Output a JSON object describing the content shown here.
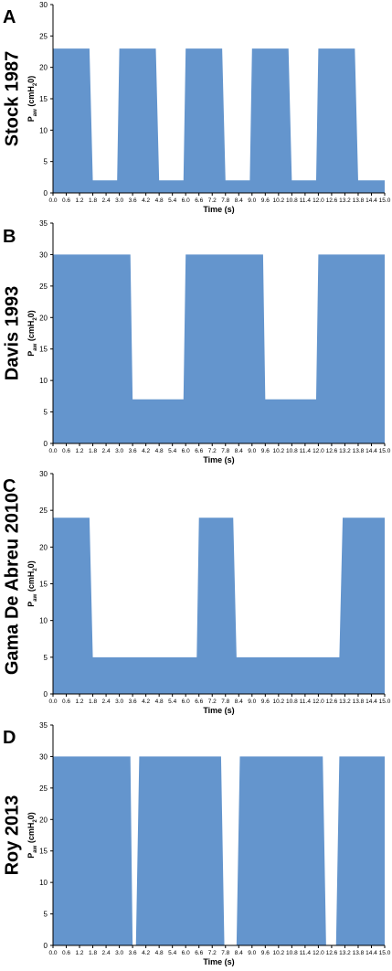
{
  "chart_data": [
    {
      "type": "area",
      "panel": "A",
      "side_label": "Stock 1987",
      "xlabel": "Time (s)",
      "ylabel": {
        "main": "P",
        "sub": "aw",
        "rest": " (cmH",
        "sub2": "2",
        "end": "0)"
      },
      "x_ticks": [
        "0.0",
        "0.6",
        "1.2",
        "1.8",
        "2.4",
        "3.0",
        "3.6",
        "4.2",
        "4.8",
        "5.4",
        "6.0",
        "6.6",
        "7.2",
        "7.8",
        "8.4",
        "9.0",
        "9.6",
        "10.2",
        "10.8",
        "11.4",
        "12.0",
        "12.6",
        "13.2",
        "13.8",
        "14.4",
        "15.0"
      ],
      "y_ticks": [
        0,
        5,
        10,
        15,
        20,
        25,
        30
      ],
      "xlim": [
        0,
        15
      ],
      "ylim": [
        0,
        30
      ],
      "x": [
        0,
        1.65,
        1.8,
        2.9,
        3.0,
        4.65,
        4.8,
        5.9,
        6.0,
        7.65,
        7.8,
        8.9,
        9.0,
        10.65,
        10.8,
        11.9,
        12.0,
        13.65,
        13.8,
        14.9,
        15.0
      ],
      "y": [
        23,
        23,
        2,
        2,
        23,
        23,
        2,
        2,
        23,
        23,
        2,
        2,
        23,
        23,
        2,
        2,
        23,
        23,
        2,
        2,
        2
      ],
      "color": "#6495CD"
    },
    {
      "type": "area",
      "panel": "B",
      "side_label": "Davis 1993",
      "xlabel": "Time (s)",
      "ylabel": {
        "main": "P",
        "sub": "aw",
        "rest": " (cmH",
        "sub2": "2",
        "end": "0)"
      },
      "x_ticks": [
        "0.0",
        "0.6",
        "1.2",
        "1.8",
        "2.4",
        "3.0",
        "3.6",
        "4.2",
        "4.8",
        "5.4",
        "6.0",
        "6.6",
        "7.2",
        "7.8",
        "8.4",
        "9.0",
        "9.6",
        "10.2",
        "10.8",
        "11.4",
        "12.0",
        "12.6",
        "13.2",
        "13.8",
        "14.4",
        "15.0"
      ],
      "y_ticks": [
        0,
        5,
        10,
        15,
        20,
        25,
        30,
        35
      ],
      "xlim": [
        0,
        15
      ],
      "ylim": [
        0,
        35
      ],
      "x": [
        0,
        3.5,
        3.6,
        5.9,
        6.0,
        9.5,
        9.6,
        11.9,
        12.0,
        15.0
      ],
      "y": [
        30,
        30,
        7,
        7,
        30,
        30,
        7,
        7,
        30,
        30
      ],
      "color": "#6495CD"
    },
    {
      "type": "area",
      "panel": "C",
      "side_label": "Gama De Abreu 2010",
      "xlabel": "Time (s)",
      "ylabel": {
        "main": "P",
        "sub": "aw",
        "rest": " (cmH",
        "sub2": "2",
        "end": "0)"
      },
      "x_ticks": [
        "0.0",
        "0.6",
        "1.2",
        "1.8",
        "2.4",
        "3.0",
        "3.6",
        "4.2",
        "4.8",
        "5.4",
        "6.0",
        "6.6",
        "7.2",
        "7.8",
        "8.4",
        "9.0",
        "9.6",
        "10.2",
        "10.8",
        "11.4",
        "12.0",
        "12.6",
        "13.2",
        "13.8",
        "14.4",
        "15.0"
      ],
      "y_ticks": [
        0,
        5,
        10,
        15,
        20,
        25,
        30
      ],
      "xlim": [
        0,
        15
      ],
      "ylim": [
        0,
        30
      ],
      "x": [
        0,
        1.65,
        1.8,
        6.5,
        6.6,
        8.15,
        8.3,
        12.95,
        13.1,
        15.0
      ],
      "y": [
        24,
        24,
        5,
        5,
        24,
        24,
        5,
        5,
        24,
        24
      ],
      "color": "#6495CD"
    },
    {
      "type": "area",
      "panel": "D",
      "side_label": "Roy 2013",
      "xlabel": "Time (s)",
      "ylabel": {
        "main": "P",
        "sub": "aw",
        "rest": " (cmH",
        "sub2": "2",
        "end": "0)"
      },
      "x_ticks": [
        "0.0",
        "0.6",
        "1.2",
        "1.8",
        "2.4",
        "3.0",
        "3.6",
        "4.2",
        "4.8",
        "5.4",
        "6.0",
        "6.6",
        "7.2",
        "7.8",
        "8.4",
        "9.0",
        "9.6",
        "10.2",
        "10.8",
        "11.4",
        "12.0",
        "12.6",
        "13.2",
        "13.8",
        "14.4",
        "15.0"
      ],
      "y_ticks": [
        0,
        5,
        10,
        15,
        20,
        25,
        30,
        35
      ],
      "xlim": [
        0,
        15
      ],
      "ylim": [
        0,
        35
      ],
      "x": [
        0,
        3.5,
        3.6,
        3.75,
        3.9,
        7.6,
        7.75,
        8.3,
        8.45,
        12.2,
        12.35,
        12.8,
        12.95,
        15.0
      ],
      "y": [
        30,
        30,
        0,
        0,
        30,
        30,
        0,
        0,
        30,
        30,
        0,
        0,
        30,
        30
      ],
      "color": "#6495CD"
    }
  ]
}
